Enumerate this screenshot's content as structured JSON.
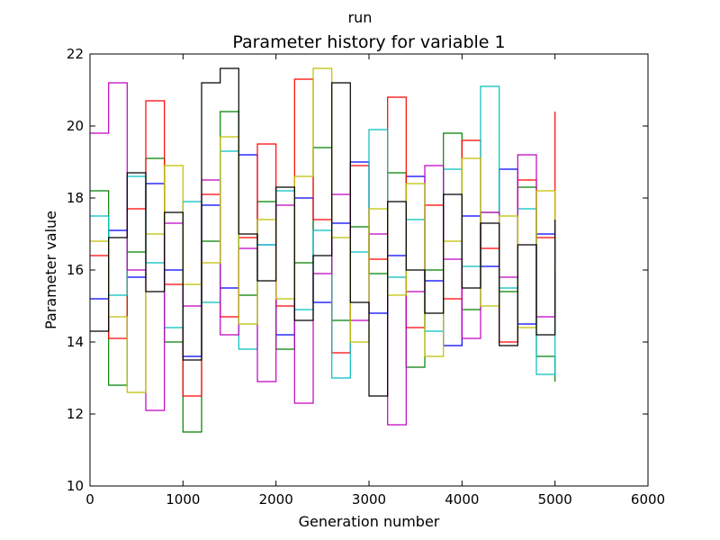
{
  "suptitle": "run",
  "chart_data": {
    "type": "line",
    "title": "Parameter history for variable 1",
    "xlabel": "Generation number",
    "ylabel": "Parameter value",
    "xlim": [
      0,
      6000
    ],
    "ylim": [
      10,
      22
    ],
    "xticks": [
      "0",
      "1000",
      "2000",
      "3000",
      "4000",
      "5000",
      "6000"
    ],
    "yticks": [
      "10",
      "12",
      "14",
      "16",
      "18",
      "20",
      "22"
    ],
    "grid": false,
    "legend": "none",
    "line_style": "step",
    "colors": [
      "#0000ff",
      "#008000",
      "#ff0000",
      "#00bfbf",
      "#bf00bf",
      "#bfbf00",
      "#000000"
    ],
    "series": [
      {
        "x": [
          0,
          200,
          400,
          600,
          800,
          1000,
          1200,
          1400,
          1600,
          1800,
          2000,
          2200,
          2400,
          2600,
          2800,
          3000,
          3200,
          3400,
          3600,
          3800,
          4000,
          4200,
          4400,
          4600,
          4800,
          5000
        ],
        "y": [
          15.2,
          17.1,
          15.8,
          18.4,
          16.0,
          13.6,
          17.8,
          15.5,
          19.2,
          16.7,
          14.2,
          18.0,
          15.1,
          17.3,
          19.0,
          14.8,
          16.4,
          18.6,
          15.7,
          13.9,
          17.5,
          16.1,
          18.8,
          14.5,
          17.0,
          16.2
        ]
      },
      {
        "x": [
          0,
          200,
          400,
          600,
          800,
          1000,
          1200,
          1400,
          1600,
          1800,
          2000,
          2200,
          2400,
          2600,
          2800,
          3000,
          3200,
          3400,
          3600,
          3800,
          4000,
          4200,
          4400,
          4600,
          4800,
          5000
        ],
        "y": [
          18.2,
          12.8,
          16.5,
          19.1,
          14.0,
          11.5,
          16.8,
          20.4,
          15.3,
          17.9,
          13.8,
          16.2,
          19.4,
          14.6,
          17.2,
          15.9,
          18.7,
          13.3,
          16.0,
          19.8,
          14.9,
          17.6,
          15.4,
          18.3,
          13.6,
          12.9
        ]
      },
      {
        "x": [
          0,
          200,
          400,
          600,
          800,
          1000,
          1200,
          1400,
          1600,
          1800,
          2000,
          2200,
          2400,
          2600,
          2800,
          3000,
          3200,
          3400,
          3600,
          3800,
          4000,
          4200,
          4400,
          4600,
          4800,
          5000
        ],
        "y": [
          16.4,
          14.1,
          17.7,
          20.7,
          15.6,
          12.5,
          18.1,
          14.7,
          16.9,
          19.5,
          15.0,
          21.3,
          17.4,
          13.7,
          18.9,
          16.3,
          20.8,
          14.4,
          17.8,
          15.2,
          19.6,
          16.6,
          14.0,
          18.5,
          16.9,
          20.4
        ]
      },
      {
        "x": [
          0,
          200,
          400,
          600,
          800,
          1000,
          1200,
          1400,
          1600,
          1800,
          2000,
          2200,
          2400,
          2600,
          2800,
          3000,
          3200,
          3400,
          3600,
          3800,
          4000,
          4200,
          4400,
          4600,
          4800,
          5000
        ],
        "y": [
          17.5,
          15.3,
          18.6,
          16.2,
          14.4,
          17.9,
          15.1,
          19.3,
          13.8,
          16.7,
          18.2,
          14.9,
          17.1,
          13.0,
          16.5,
          19.9,
          15.8,
          17.4,
          14.3,
          18.8,
          16.1,
          21.1,
          15.5,
          17.7,
          13.1,
          16.8
        ]
      },
      {
        "x": [
          0,
          200,
          400,
          600,
          800,
          1000,
          1200,
          1400,
          1600,
          1800,
          2000,
          2200,
          2400,
          2600,
          2800,
          3000,
          3200,
          3400,
          3600,
          3800,
          4000,
          4200,
          4400,
          4600,
          4800,
          5000
        ],
        "y": [
          19.8,
          21.2,
          16.0,
          12.1,
          17.3,
          15.0,
          18.5,
          14.2,
          16.6,
          12.9,
          17.8,
          12.3,
          15.9,
          18.1,
          14.6,
          17.0,
          11.7,
          15.4,
          18.9,
          16.3,
          14.1,
          17.6,
          15.8,
          19.2,
          14.7,
          17.2
        ]
      },
      {
        "x": [
          0,
          200,
          400,
          600,
          800,
          1000,
          1200,
          1400,
          1600,
          1800,
          2000,
          2200,
          2400,
          2600,
          2800,
          3000,
          3200,
          3400,
          3600,
          3800,
          4000,
          4200,
          4400,
          4600,
          4800,
          5000
        ],
        "y": [
          16.8,
          14.7,
          12.6,
          17.0,
          18.9,
          15.6,
          16.2,
          19.7,
          14.5,
          17.4,
          15.2,
          18.6,
          21.6,
          16.9,
          14.0,
          17.7,
          15.3,
          18.4,
          13.6,
          16.8,
          19.1,
          15.0,
          17.5,
          14.4,
          18.2,
          15.9
        ]
      },
      {
        "x": [
          0,
          200,
          400,
          600,
          800,
          1000,
          1200,
          1400,
          1600,
          1800,
          2000,
          2200,
          2400,
          2600,
          2800,
          3000,
          3200,
          3400,
          3600,
          3800,
          4000,
          4200,
          4400,
          4600,
          4800,
          5000
        ],
        "y": [
          14.3,
          16.9,
          18.7,
          15.4,
          17.6,
          13.5,
          21.2,
          21.6,
          17.0,
          15.7,
          18.3,
          14.6,
          16.4,
          21.2,
          15.1,
          12.5,
          17.9,
          16.0,
          14.8,
          18.1,
          15.5,
          17.3,
          13.9,
          16.7,
          14.2,
          17.4
        ]
      }
    ]
  }
}
